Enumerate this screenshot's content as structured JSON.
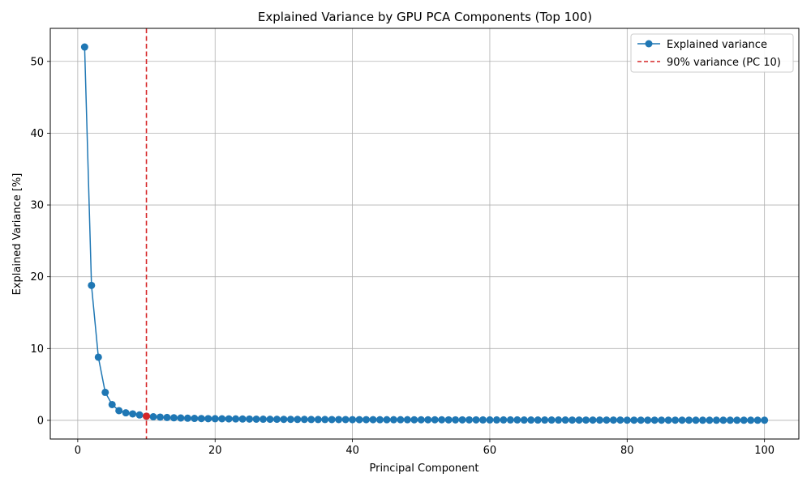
{
  "chart_data": {
    "type": "line",
    "title": "Explained Variance by GPU PCA Components (Top 100)",
    "xlabel": "Principal Component",
    "ylabel": "Explained Variance [%]",
    "xlim": [
      -4,
      105
    ],
    "ylim": [
      -2.6,
      54.6
    ],
    "xticks": [
      0,
      20,
      40,
      60,
      80,
      100
    ],
    "yticks": [
      0,
      10,
      20,
      30,
      40,
      50
    ],
    "grid": true,
    "legend_position": "top-right",
    "colors": {
      "series": "#1f77b4",
      "threshold": "#d62728"
    },
    "series": [
      {
        "name": "Explained variance",
        "x": [
          1,
          2,
          3,
          4,
          5,
          6,
          7,
          8,
          9,
          10,
          11,
          12,
          13,
          14,
          15,
          16,
          17,
          18,
          19,
          20,
          21,
          22,
          23,
          24,
          25,
          26,
          27,
          28,
          29,
          30,
          31,
          32,
          33,
          34,
          35,
          36,
          37,
          38,
          39,
          40,
          41,
          42,
          43,
          44,
          45,
          46,
          47,
          48,
          49,
          50,
          51,
          52,
          53,
          54,
          55,
          56,
          57,
          58,
          59,
          60,
          61,
          62,
          63,
          64,
          65,
          66,
          67,
          68,
          69,
          70,
          71,
          72,
          73,
          74,
          75,
          76,
          77,
          78,
          79,
          80,
          81,
          82,
          83,
          84,
          85,
          86,
          87,
          88,
          89,
          90,
          91,
          92,
          93,
          94,
          95,
          96,
          97,
          98,
          99,
          100
        ],
        "values": [
          52.0,
          18.8,
          8.8,
          3.9,
          2.2,
          1.35,
          1.05,
          0.9,
          0.75,
          0.58,
          0.5,
          0.45,
          0.4,
          0.36,
          0.33,
          0.3,
          0.27,
          0.25,
          0.24,
          0.23,
          0.22,
          0.21,
          0.2,
          0.19,
          0.18,
          0.17,
          0.16,
          0.15,
          0.15,
          0.14,
          0.14,
          0.13,
          0.13,
          0.12,
          0.12,
          0.12,
          0.11,
          0.11,
          0.11,
          0.1,
          0.1,
          0.1,
          0.1,
          0.09,
          0.09,
          0.09,
          0.09,
          0.09,
          0.08,
          0.08,
          0.08,
          0.08,
          0.08,
          0.07,
          0.07,
          0.07,
          0.07,
          0.07,
          0.06,
          0.06,
          0.06,
          0.06,
          0.06,
          0.06,
          0.05,
          0.05,
          0.05,
          0.05,
          0.05,
          0.05,
          0.05,
          0.04,
          0.04,
          0.04,
          0.04,
          0.04,
          0.04,
          0.04,
          0.04,
          0.03,
          0.03,
          0.03,
          0.03,
          0.03,
          0.03,
          0.03,
          0.03,
          0.03,
          0.03,
          0.02,
          0.02,
          0.02,
          0.02,
          0.02,
          0.02,
          0.02,
          0.02,
          0.02,
          0.02,
          0.02
        ]
      }
    ],
    "threshold": {
      "label": "90% variance (PC 10)",
      "x": 10,
      "value": 0.58
    }
  }
}
